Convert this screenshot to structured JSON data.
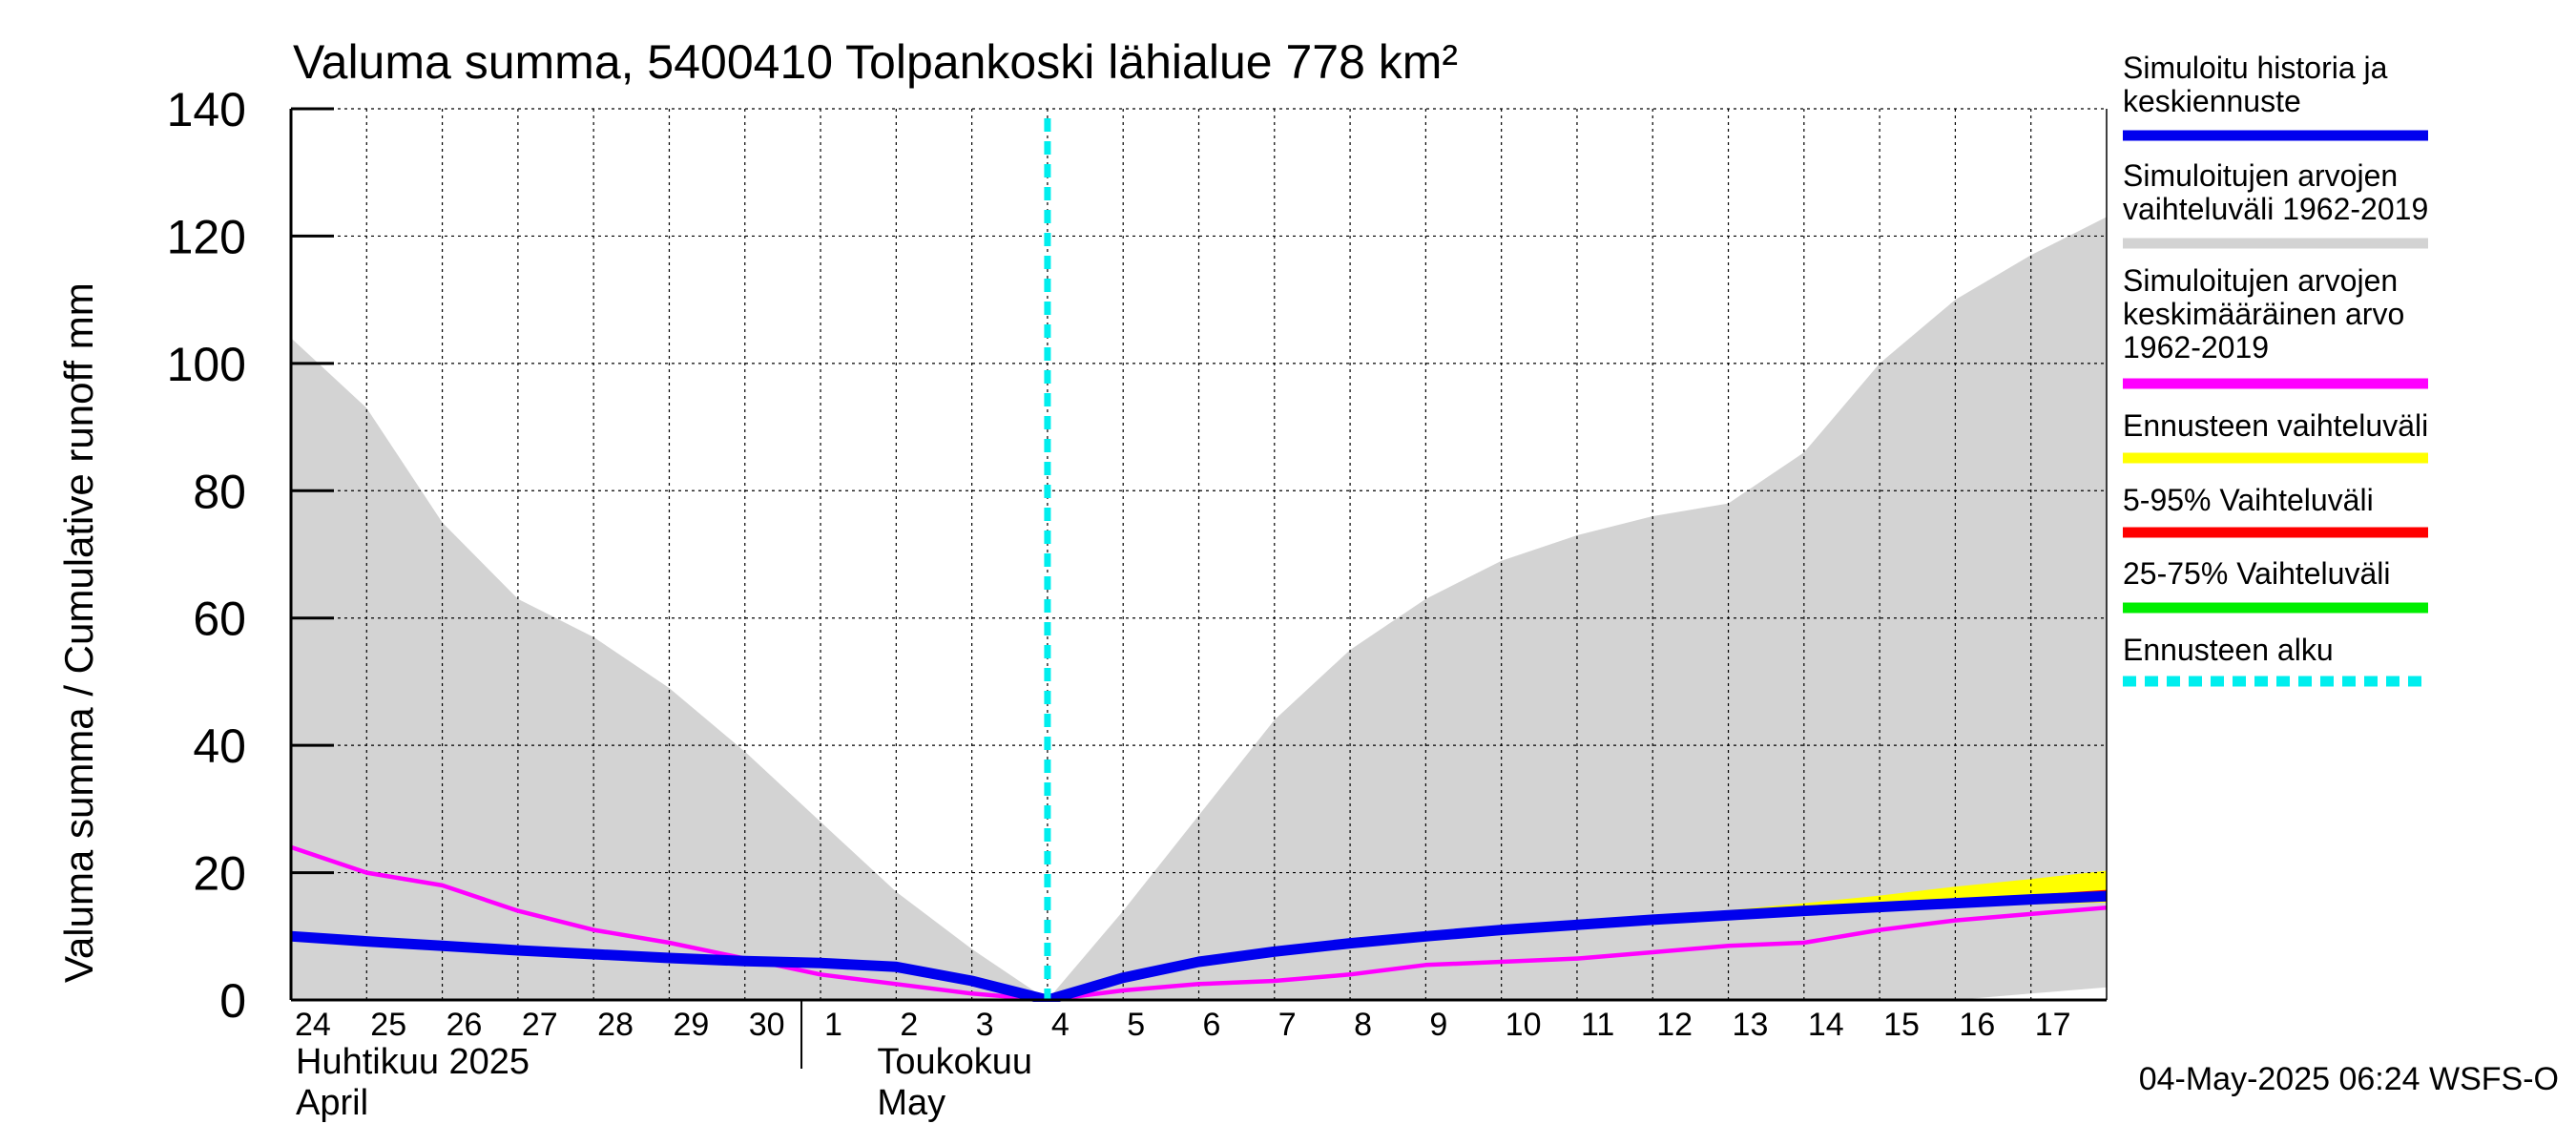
{
  "chart_data": {
    "type": "area",
    "title": "Valuma summa, 5400410 Tolpankoski lähialue 778 km²",
    "ylabel": "Valuma summa / Cumulative runoff    mm",
    "ylim": [
      0,
      140
    ],
    "yticks": [
      0,
      20,
      40,
      60,
      80,
      100,
      120,
      140
    ],
    "grid": true,
    "legend_placement": "right",
    "x_start": "2025-04-24",
    "x_end": "2025-05-17",
    "x_tick_labels": [
      "24",
      "25",
      "26",
      "27",
      "28",
      "29",
      "30",
      "1",
      "2",
      "3",
      "4",
      "5",
      "6",
      "7",
      "8",
      "9",
      "10",
      "11",
      "12",
      "13",
      "14",
      "15",
      "16",
      "17"
    ],
    "month_labels": [
      {
        "fi": "Huhtikuu  2025",
        "en": "April"
      },
      {
        "fi": "Toukokuu",
        "en": "May"
      }
    ],
    "forecast_start": "2025-05-04",
    "footer": "04-May-2025 06:24 WSFS-O",
    "x": [
      "2025-04-24",
      "2025-04-25",
      "2025-04-26",
      "2025-04-27",
      "2025-04-28",
      "2025-04-29",
      "2025-04-30",
      "2025-05-01",
      "2025-05-02",
      "2025-05-03",
      "2025-05-04",
      "2025-05-05",
      "2025-05-06",
      "2025-05-07",
      "2025-05-08",
      "2025-05-09",
      "2025-05-10",
      "2025-05-11",
      "2025-05-12",
      "2025-05-13",
      "2025-05-14",
      "2025-05-15",
      "2025-05-16",
      "2025-05-17",
      "2025-05-18"
    ],
    "series": [
      {
        "name": "Simuloitujen arvojen vaihteluväli 1962-2019",
        "kind": "band",
        "color": "#d3d3d3",
        "upper": [
          104,
          93,
          75,
          63,
          57,
          49,
          39,
          28,
          17,
          8,
          0,
          14,
          29,
          44,
          55,
          63,
          69,
          73,
          76,
          78,
          86,
          100,
          110,
          117,
          123
        ],
        "lower": [
          0,
          0,
          0,
          0,
          0,
          0,
          0,
          0,
          0,
          0,
          0,
          0,
          0,
          0,
          0,
          0,
          0,
          0,
          0,
          0,
          0,
          0,
          0,
          1,
          2
        ]
      },
      {
        "name": "Ennusteen vaihteluväli",
        "kind": "band",
        "color": "#ffff00",
        "x": [
          "2025-05-04",
          "2025-05-05",
          "2025-05-06",
          "2025-05-07",
          "2025-05-08",
          "2025-05-09",
          "2025-05-10",
          "2025-05-11",
          "2025-05-12",
          "2025-05-13",
          "2025-05-14",
          "2025-05-15",
          "2025-05-16",
          "2025-05-17",
          "2025-05-18"
        ],
        "upper": [
          0,
          3.7,
          6.2,
          7.8,
          9.2,
          10.3,
          11.3,
          12.2,
          13.1,
          14.1,
          15.2,
          16.4,
          17.8,
          19.0,
          20.3
        ],
        "lower": [
          0,
          3.4,
          5.8,
          7.4,
          8.8,
          9.8,
          10.8,
          11.6,
          12.4,
          13.0,
          13.6,
          14.1,
          14.6,
          15.0,
          15.3
        ]
      },
      {
        "name": "5-95% Vaihteluväli",
        "kind": "band",
        "color": "#ff0000",
        "x": [
          "2025-05-04",
          "2025-05-05",
          "2025-05-06",
          "2025-05-07",
          "2025-05-08",
          "2025-05-09",
          "2025-05-10",
          "2025-05-11",
          "2025-05-12",
          "2025-05-13",
          "2025-05-14",
          "2025-05-15",
          "2025-05-16",
          "2025-05-17",
          "2025-05-18"
        ],
        "upper": [
          0,
          3.6,
          6.1,
          7.7,
          9.1,
          10.2,
          11.2,
          12.0,
          12.8,
          13.5,
          14.2,
          14.9,
          15.7,
          16.5,
          17.3
        ],
        "lower": [
          0,
          3.5,
          5.9,
          7.5,
          8.9,
          9.9,
          10.9,
          11.7,
          12.5,
          13.1,
          13.7,
          14.2,
          14.7,
          15.1,
          15.5
        ]
      },
      {
        "name": "25-75% Vaihteluväli",
        "kind": "band",
        "color": "#00dd00",
        "x": [
          "2025-05-04",
          "2025-05-05",
          "2025-05-06",
          "2025-05-07",
          "2025-05-08",
          "2025-05-09",
          "2025-05-10",
          "2025-05-11",
          "2025-05-12",
          "2025-05-13",
          "2025-05-14",
          "2025-05-15",
          "2025-05-16",
          "2025-05-17",
          "2025-05-18"
        ],
        "upper": [
          0,
          3.55,
          6.0,
          7.6,
          9.0,
          10.05,
          11.05,
          11.85,
          12.65,
          13.3,
          13.95,
          14.55,
          15.2,
          15.8,
          16.4
        ],
        "lower": [
          0,
          3.5,
          5.95,
          7.55,
          8.95,
          9.95,
          10.95,
          11.75,
          12.55,
          13.2,
          13.8,
          14.35,
          14.9,
          15.4,
          15.9
        ]
      },
      {
        "name": "Simuloitujen arvojen keskimääräinen arvo 1962-2019",
        "kind": "line",
        "color": "#ff00ff",
        "values": [
          24,
          20,
          18,
          14,
          11,
          9,
          6.5,
          4,
          2.5,
          1,
          0,
          1.5,
          2.5,
          3,
          4,
          5.5,
          6,
          6.5,
          7.5,
          8.5,
          9,
          11,
          12.5,
          13.5,
          14.5
        ]
      },
      {
        "name": "Simuloitu historia ja keskiennuste",
        "kind": "line",
        "color": "#0000ee",
        "values": [
          10,
          9.2,
          8.5,
          7.8,
          7.2,
          6.6,
          6.1,
          5.8,
          5.2,
          3.0,
          0,
          3.5,
          6.0,
          7.6,
          8.9,
          10.0,
          11.0,
          11.8,
          12.6,
          13.3,
          14.0,
          14.6,
          15.2,
          15.8,
          16.3
        ]
      }
    ],
    "legend": [
      {
        "lines": [
          "Simuloitu historia ja",
          "keskiennuste"
        ],
        "color": "#0000ee",
        "style": "solid"
      },
      {
        "lines": [
          "Simuloitujen arvojen",
          "vaihteluväli 1962-2019"
        ],
        "color": "#d3d3d3",
        "style": "solid"
      },
      {
        "lines": [
          "Simuloitujen arvojen",
          "keskimääräinen arvo",
          "   1962-2019"
        ],
        "color": "#ff00ff",
        "style": "solid"
      },
      {
        "lines": [
          "Ennusteen vaihteluväli"
        ],
        "color": "#ffff00",
        "style": "solid"
      },
      {
        "lines": [
          "5-95% Vaihteluväli"
        ],
        "color": "#ff0000",
        "style": "solid"
      },
      {
        "lines": [
          "25-75% Vaihteluväli"
        ],
        "color": "#00ee00",
        "style": "solid"
      },
      {
        "lines": [
          "Ennusteen alku"
        ],
        "color": "#00eeee",
        "style": "dashed"
      }
    ],
    "forecast_line_color": "#00eeee"
  }
}
